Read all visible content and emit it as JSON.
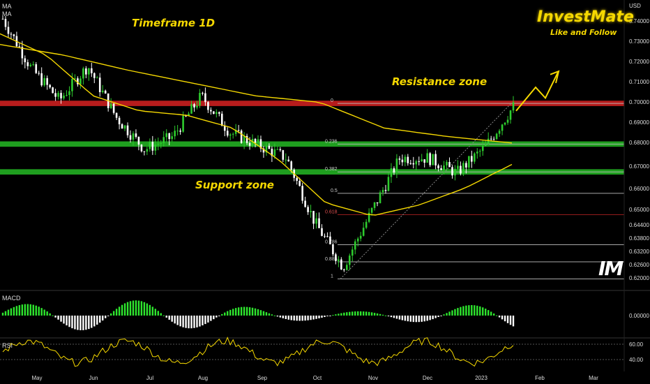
{
  "header": {
    "indicator_1": "MA",
    "indicator_2": "MA"
  },
  "annotations": {
    "brand_title": "InvestMate",
    "brand_subtitle": "Like and Follow",
    "timeframe": "Timeframe 1D",
    "resistance": "Resistance zone",
    "support": "Support zone",
    "logo": "IM"
  },
  "panes": {
    "macd_label": "MACD",
    "rsi_label": "RSI"
  },
  "colors": {
    "background": "#000000",
    "up_candle": "#2ecc2e",
    "down_candle": "#ffffff",
    "ma_line": "#f5d800",
    "resistance_zone": "#b71c1c",
    "support_zone": "#1f9e1f",
    "rsi_line": "#f5d800",
    "macd_positive": "#2ee62e",
    "macd_negative": "#ffffff"
  },
  "chart_data": {
    "type": "candlestick",
    "currency": "USD",
    "price_axis_ticks": [
      "0.74000",
      "0.73000",
      "0.72000",
      "0.71000",
      "0.70000",
      "0.69000",
      "0.68000",
      "0.67000",
      "0.66000",
      "0.65000",
      "0.64400",
      "0.63800",
      "0.63200",
      "0.62600",
      "0.62000"
    ],
    "time_axis_ticks": [
      "May",
      "Jun",
      "Jul",
      "Aug",
      "Sep",
      "Oct",
      "Nov",
      "Dec",
      "2023",
      "Feb",
      "Mar"
    ],
    "zones": [
      {
        "type": "resistance",
        "level": 0.7015,
        "thickness": 0.0025
      },
      {
        "type": "support",
        "level": 0.6825,
        "thickness": 0.0025
      },
      {
        "type": "support",
        "level": 0.6695,
        "thickness": 0.0025
      }
    ],
    "fib_levels": [
      {
        "label": "0",
        "price": 0.7015
      },
      {
        "label": "0.236",
        "price": 0.6825
      },
      {
        "label": "0.382",
        "price": 0.6695
      },
      {
        "label": "0.5",
        "price": 0.6595
      },
      {
        "label": "0.618",
        "price": 0.6495
      },
      {
        "label": "0.786",
        "price": 0.6355
      },
      {
        "label": "0.886",
        "price": 0.6275
      },
      {
        "label": "1",
        "price": 0.6195
      }
    ],
    "price_keypoints": [
      [
        "May",
        0.741
      ],
      [
        "mid-May",
        0.718
      ],
      [
        "late-May",
        0.703
      ],
      [
        "Jun",
        0.719
      ],
      [
        "mid-Jun",
        0.695
      ],
      [
        "Jul",
        0.68
      ],
      [
        "mid-Jul",
        0.686
      ],
      [
        "Aug",
        0.705
      ],
      [
        "mid-Aug",
        0.688
      ],
      [
        "Sep",
        0.682
      ],
      [
        "mid-Sep",
        0.676
      ],
      [
        "Oct",
        0.646
      ],
      [
        "mid-Oct",
        0.625
      ],
      [
        "Nov",
        0.651
      ],
      [
        "mid-Nov",
        0.676
      ],
      [
        "Dec",
        0.676
      ],
      [
        "mid-Dec",
        0.669
      ],
      [
        "2023",
        0.681
      ],
      [
        "early-Jan",
        0.7
      ]
    ],
    "ma_slow_keypoints": [
      0.729,
      0.724,
      0.717,
      0.711,
      0.705,
      0.702,
      0.69,
      0.686,
      0.683
    ],
    "ma_fast_keypoints": [
      0.734,
      0.724,
      0.705,
      0.698,
      0.696,
      0.69,
      0.675,
      0.655,
      0.649,
      0.654,
      0.662,
      0.673
    ],
    "projection": "up to 0.712 from 0.698",
    "macd_y_tick": "0.00000",
    "rsi_y_ticks": [
      "60.00",
      "40.00"
    ]
  }
}
